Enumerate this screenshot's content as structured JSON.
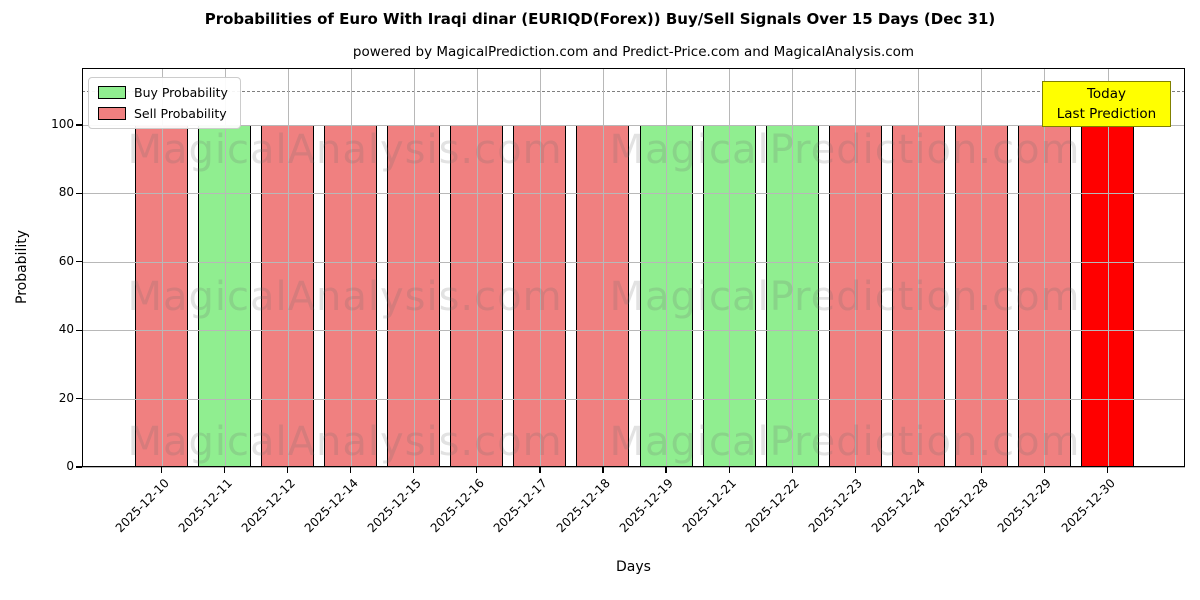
{
  "figure": {
    "title": "Probabilities of Euro With Iraqi dinar (EURIQD(Forex)) Buy/Sell Signals Over 15 Days (Dec 31)",
    "subtitle": "powered by MagicalPrediction.com and Predict-Price.com and MagicalAnalysis.com"
  },
  "chart_data": {
    "type": "bar",
    "title": "Probabilities of Euro With Iraqi dinar (EURIQD(Forex)) Buy/Sell Signals Over 15 Days (Dec 31)",
    "subtitle": "powered by MagicalPrediction.com and Predict-Price.com and MagicalAnalysis.com",
    "xlabel": "Days",
    "ylabel": "Probability",
    "ylim": [
      0,
      116.7
    ],
    "yticks": [
      0,
      20,
      40,
      60,
      80,
      100
    ],
    "grid": true,
    "dashed_hline_y": 110,
    "categories": [
      "2025-12-10",
      "2025-12-11",
      "2025-12-12",
      "2025-12-14",
      "2025-12-15",
      "2025-12-16",
      "2025-12-17",
      "2025-12-18",
      "2025-12-19",
      "2025-12-21",
      "2025-12-22",
      "2025-12-23",
      "2025-12-24",
      "2025-12-28",
      "2025-12-29",
      "2025-12-30"
    ],
    "series": [
      {
        "name": "Buy Probability",
        "values": [
          0,
          100,
          0,
          0,
          0,
          0,
          0,
          0,
          100,
          100,
          100,
          0,
          0,
          0,
          0,
          0
        ]
      },
      {
        "name": "Sell Probability",
        "values": [
          100,
          0,
          100,
          100,
          100,
          100,
          100,
          100,
          0,
          0,
          0,
          100,
          100,
          100,
          100,
          100
        ]
      }
    ],
    "bars": [
      {
        "date": "2025-12-10",
        "value": 100,
        "signal": "sell"
      },
      {
        "date": "2025-12-11",
        "value": 100,
        "signal": "buy"
      },
      {
        "date": "2025-12-12",
        "value": 100,
        "signal": "sell"
      },
      {
        "date": "2025-12-14",
        "value": 100,
        "signal": "sell"
      },
      {
        "date": "2025-12-15",
        "value": 100,
        "signal": "sell"
      },
      {
        "date": "2025-12-16",
        "value": 100,
        "signal": "sell"
      },
      {
        "date": "2025-12-17",
        "value": 100,
        "signal": "sell"
      },
      {
        "date": "2025-12-18",
        "value": 100,
        "signal": "sell"
      },
      {
        "date": "2025-12-19",
        "value": 100,
        "signal": "buy"
      },
      {
        "date": "2025-12-21",
        "value": 100,
        "signal": "buy"
      },
      {
        "date": "2025-12-22",
        "value": 100,
        "signal": "buy"
      },
      {
        "date": "2025-12-23",
        "value": 100,
        "signal": "sell"
      },
      {
        "date": "2025-12-24",
        "value": 100,
        "signal": "sell"
      },
      {
        "date": "2025-12-28",
        "value": 100,
        "signal": "sell"
      },
      {
        "date": "2025-12-29",
        "value": 100,
        "signal": "sell"
      },
      {
        "date": "2025-12-30",
        "value": 100,
        "signal": "today"
      }
    ],
    "today_highlight_index": 15,
    "colors": {
      "buy": "#90EE90",
      "sell": "#F08080",
      "today": "#FF0000",
      "annotation_bg": "#FFFF00",
      "annotation_border": "#808000",
      "grid": "#b8b8b8"
    },
    "legend": {
      "position": "upper-left",
      "entries": [
        {
          "label": "Buy Probability",
          "color": "#90EE90"
        },
        {
          "label": "Sell Probability",
          "color": "#F08080"
        }
      ]
    },
    "annotation": {
      "lines": [
        "Today",
        "Last Prediction"
      ]
    },
    "watermarks": {
      "left_text": "MagicalAnalysis.com",
      "right_text": "MagicalPrediction.com",
      "rows": 3
    }
  }
}
